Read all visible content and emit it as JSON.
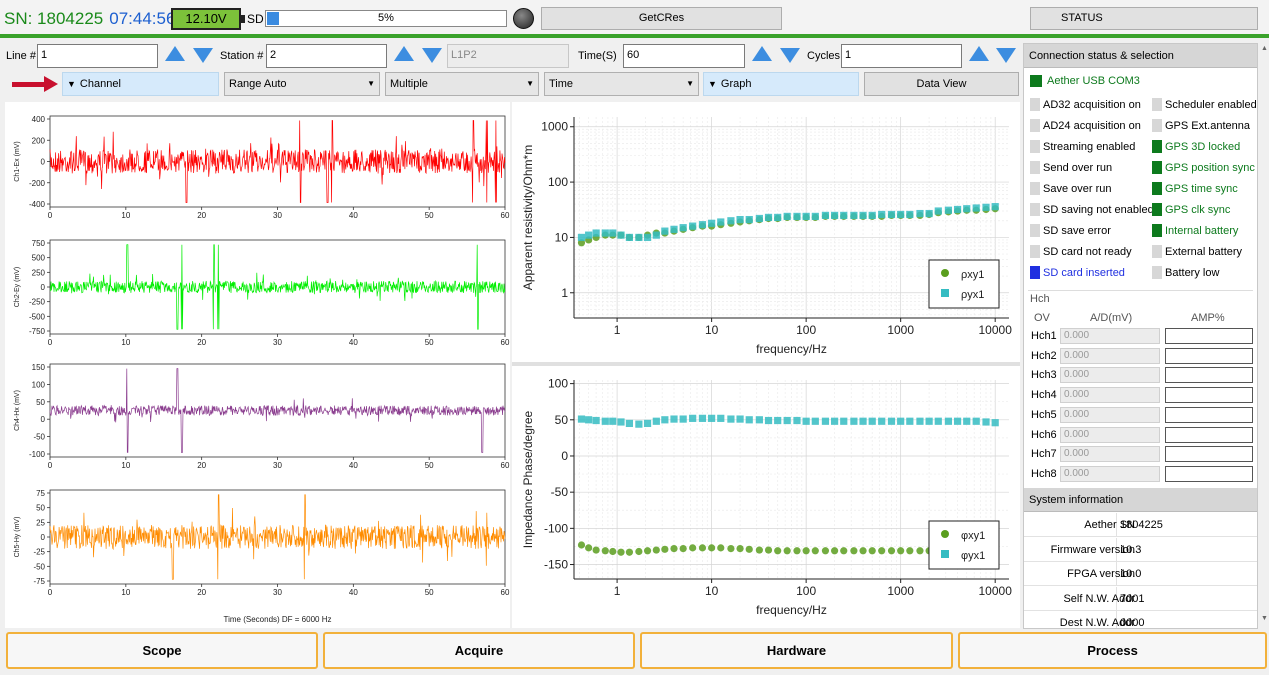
{
  "header": {
    "sn_label": "SN: 1804225",
    "time": "07:44:56",
    "battery": "12.10V",
    "sd_label": "SD",
    "sd_progress_text": "5%",
    "sd_progress": 0.05,
    "getc_label": "GetCRes",
    "status_label": "STATUS"
  },
  "params": {
    "line_label": "Line #",
    "line_value": "1",
    "station_label": "Station #",
    "station_value": "2",
    "site_name": "L1P2",
    "time_label": "Time(S)",
    "time_value": "60",
    "cycles_label": "Cycles",
    "cycles_value": "1"
  },
  "toolbar": {
    "channel": "Channel",
    "range": "Range Auto",
    "multiple": "Multiple",
    "time": "Time",
    "graph": "Graph",
    "dataview": "Data View"
  },
  "waveforms": {
    "xlabel": "Time (Seconds) DF = 6000 Hz",
    "xticks": [
      "0",
      "10",
      "20",
      "30",
      "40",
      "50",
      "60"
    ],
    "channels": [
      {
        "name": "Ch1-Ex (mV)",
        "color": "#ff0000",
        "yticks": [
          "400",
          "200",
          "0",
          "-200",
          "-400"
        ]
      },
      {
        "name": "Ch2-Ey (mV)",
        "color": "#00ee00",
        "yticks": [
          "750",
          "500",
          "250",
          "0",
          "-250",
          "-500",
          "-750"
        ]
      },
      {
        "name": "Ch4-Hx (mV)",
        "color": "#8a3c8e",
        "yticks": [
          "150",
          "100",
          "50",
          "0",
          "-50",
          "-100"
        ]
      },
      {
        "name": "Ch5-Hy (mV)",
        "color": "#ff8c00",
        "yticks": [
          "75",
          "50",
          "25",
          "0",
          "-25",
          "-50",
          "-75"
        ]
      }
    ]
  },
  "chart_data": [
    {
      "type": "scatter",
      "xlabel": "frequency/Hz",
      "ylabel": "Apparent resistivity/Ohm*m",
      "log_x": true,
      "log_y": true,
      "xticks": [
        "1",
        "10",
        "100",
        "1000",
        "10000"
      ],
      "yticks": [
        "1000",
        "100",
        "10",
        "1"
      ],
      "xlim": [
        0.35,
        14000
      ],
      "ylim": [
        0.35,
        1500
      ],
      "legend_position": "bottom-right",
      "series": [
        {
          "name": "ρxy1",
          "color": "#5a9e1e",
          "marker": "circle",
          "x": [
            0.42,
            0.5,
            0.6,
            0.75,
            0.9,
            1.1,
            1.35,
            1.7,
            2.1,
            2.6,
            3.2,
            4,
            5,
            6.3,
            8,
            10,
            12.5,
            16,
            20,
            25,
            32,
            40,
            50,
            63,
            80,
            100,
            125,
            160,
            200,
            250,
            320,
            400,
            500,
            630,
            800,
            1000,
            1250,
            1600,
            2000,
            2500,
            3200,
            4000,
            5000,
            6300,
            8000,
            10000
          ],
          "y": [
            8,
            9,
            10,
            11,
            11,
            11,
            10,
            10,
            11,
            12,
            12,
            13,
            14,
            15,
            16,
            16,
            17,
            18,
            19,
            20,
            21,
            22,
            22,
            23,
            23,
            23,
            23,
            24,
            24,
            24,
            24,
            24,
            24,
            24,
            25,
            25,
            25,
            25,
            26,
            28,
            29,
            30,
            31,
            31,
            32,
            33
          ]
        },
        {
          "name": "ρyx1",
          "color": "#35bcc2",
          "marker": "square",
          "x": [
            0.42,
            0.5,
            0.6,
            0.75,
            0.9,
            1.1,
            1.35,
            1.7,
            2.1,
            2.6,
            3.2,
            4,
            5,
            6.3,
            8,
            10,
            12.5,
            16,
            20,
            25,
            32,
            40,
            50,
            63,
            80,
            100,
            125,
            160,
            200,
            250,
            320,
            400,
            500,
            630,
            800,
            1000,
            1250,
            1600,
            2000,
            2500,
            3200,
            4000,
            5000,
            6300,
            8000,
            10000
          ],
          "y": [
            10,
            11,
            12,
            12,
            12,
            11,
            10,
            10,
            10,
            11,
            13,
            14,
            15,
            16,
            17,
            18,
            19,
            20,
            21,
            21,
            22,
            23,
            23,
            24,
            24,
            24,
            24,
            25,
            25,
            25,
            25,
            25,
            25,
            26,
            26,
            26,
            26,
            27,
            27,
            30,
            31,
            32,
            33,
            34,
            35,
            36
          ]
        }
      ]
    },
    {
      "type": "scatter",
      "xlabel": "frequency/Hz",
      "ylabel": "Impedance Phase/degree",
      "log_x": true,
      "xticks": [
        "1",
        "10",
        "100",
        "1000",
        "10000"
      ],
      "yticks": [
        "100",
        "50",
        "0",
        "-50",
        "-100",
        "-150"
      ],
      "xlim": [
        0.35,
        14000
      ],
      "ylim": [
        -170,
        105
      ],
      "legend_position": "bottom-right",
      "series": [
        {
          "name": "φxy1",
          "color": "#5a9e1e",
          "marker": "circle",
          "x": [
            0.42,
            0.5,
            0.6,
            0.75,
            0.9,
            1.1,
            1.35,
            1.7,
            2.1,
            2.6,
            3.2,
            4,
            5,
            6.3,
            8,
            10,
            12.5,
            16,
            20,
            25,
            32,
            40,
            50,
            63,
            80,
            100,
            125,
            160,
            200,
            250,
            320,
            400,
            500,
            630,
            800,
            1000,
            1250,
            1600,
            2000,
            2500,
            3200,
            4000,
            5000,
            6300,
            8000,
            10000
          ],
          "y": [
            -123,
            -127,
            -130,
            -131,
            -132,
            -133,
            -133,
            -132,
            -131,
            -130,
            -129,
            -128,
            -128,
            -127,
            -127,
            -127,
            -127,
            -128,
            -128,
            -129,
            -130,
            -130,
            -131,
            -131,
            -131,
            -131,
            -131,
            -131,
            -131,
            -131,
            -131,
            -131,
            -131,
            -131,
            -131,
            -131,
            -131,
            -131,
            -131,
            -130,
            -130,
            -130,
            -131,
            -131,
            -131,
            -131
          ]
        },
        {
          "name": "φyx1",
          "color": "#35bcc2",
          "marker": "square",
          "x": [
            0.42,
            0.5,
            0.6,
            0.75,
            0.9,
            1.1,
            1.35,
            1.7,
            2.1,
            2.6,
            3.2,
            4,
            5,
            6.3,
            8,
            10,
            12.5,
            16,
            20,
            25,
            32,
            40,
            50,
            63,
            80,
            100,
            125,
            160,
            200,
            250,
            320,
            400,
            500,
            630,
            800,
            1000,
            1250,
            1600,
            2000,
            2500,
            3200,
            4000,
            5000,
            6300,
            8000,
            10000
          ],
          "y": [
            51,
            50,
            49,
            48,
            48,
            47,
            45,
            44,
            45,
            48,
            50,
            51,
            51,
            52,
            52,
            52,
            52,
            51,
            51,
            50,
            50,
            49,
            49,
            49,
            49,
            48,
            48,
            48,
            48,
            48,
            48,
            48,
            48,
            48,
            48,
            48,
            48,
            48,
            48,
            48,
            48,
            48,
            48,
            48,
            47,
            46
          ]
        }
      ]
    }
  ],
  "connection": {
    "header": "Connection status & selection",
    "device": "Aether USB COM3",
    "left": [
      {
        "label": "AD32 acquisition on",
        "state": "off"
      },
      {
        "label": "AD24 acquisition on",
        "state": "off"
      },
      {
        "label": "Streaming enabled",
        "state": "off"
      },
      {
        "label": "Send over run",
        "state": "off"
      },
      {
        "label": "Save over run",
        "state": "off"
      },
      {
        "label": "SD saving not enabled",
        "state": "off"
      },
      {
        "label": "SD save error",
        "state": "off"
      },
      {
        "label": "SD card not ready",
        "state": "off"
      },
      {
        "label": "SD card inserted",
        "state": "blue"
      }
    ],
    "right": [
      {
        "label": "Scheduler enabled",
        "state": "off"
      },
      {
        "label": "GPS Ext.antenna",
        "state": "off"
      },
      {
        "label": "GPS 3D locked",
        "state": "on"
      },
      {
        "label": "GPS position sync",
        "state": "on"
      },
      {
        "label": "GPS time sync",
        "state": "on"
      },
      {
        "label": "GPS clk sync",
        "state": "on"
      },
      {
        "label": "Internal battery",
        "state": "on"
      },
      {
        "label": "External battery",
        "state": "off"
      },
      {
        "label": "Battery low",
        "state": "off"
      }
    ]
  },
  "hch": {
    "title": "Hch",
    "col_ov": "OV",
    "col_ad": "A/D(mV)",
    "col_amp": "AMP%",
    "rows": [
      {
        "name": "Hch1",
        "value": "0.000"
      },
      {
        "name": "Hch2",
        "value": "0.000"
      },
      {
        "name": "Hch3",
        "value": "0.000"
      },
      {
        "name": "Hch4",
        "value": "0.000"
      },
      {
        "name": "Hch5",
        "value": "0.000"
      },
      {
        "name": "Hch6",
        "value": "0.000"
      },
      {
        "name": "Hch7",
        "value": "0.000"
      },
      {
        "name": "Hch8",
        "value": "0.000"
      }
    ]
  },
  "system": {
    "header": "System information",
    "rows": [
      {
        "key": "Aether SN",
        "value": "1804225"
      },
      {
        "key": "Firmware version",
        "value": "10.3"
      },
      {
        "key": "FPGA version",
        "value": "10.0"
      },
      {
        "key": "Self N.W. Addr",
        "value": "7001"
      },
      {
        "key": "Dest N.W. Addr",
        "value": "0000"
      }
    ]
  },
  "footer": {
    "scope": "Scope",
    "acquire": "Acquire",
    "hardware": "Hardware",
    "process": "Process"
  },
  "colors": {
    "accent_green": "#3aa22b",
    "status_green": "#0d7a1d",
    "footer_border": "#f2b13b",
    "arrow_red": "#c8102e"
  }
}
